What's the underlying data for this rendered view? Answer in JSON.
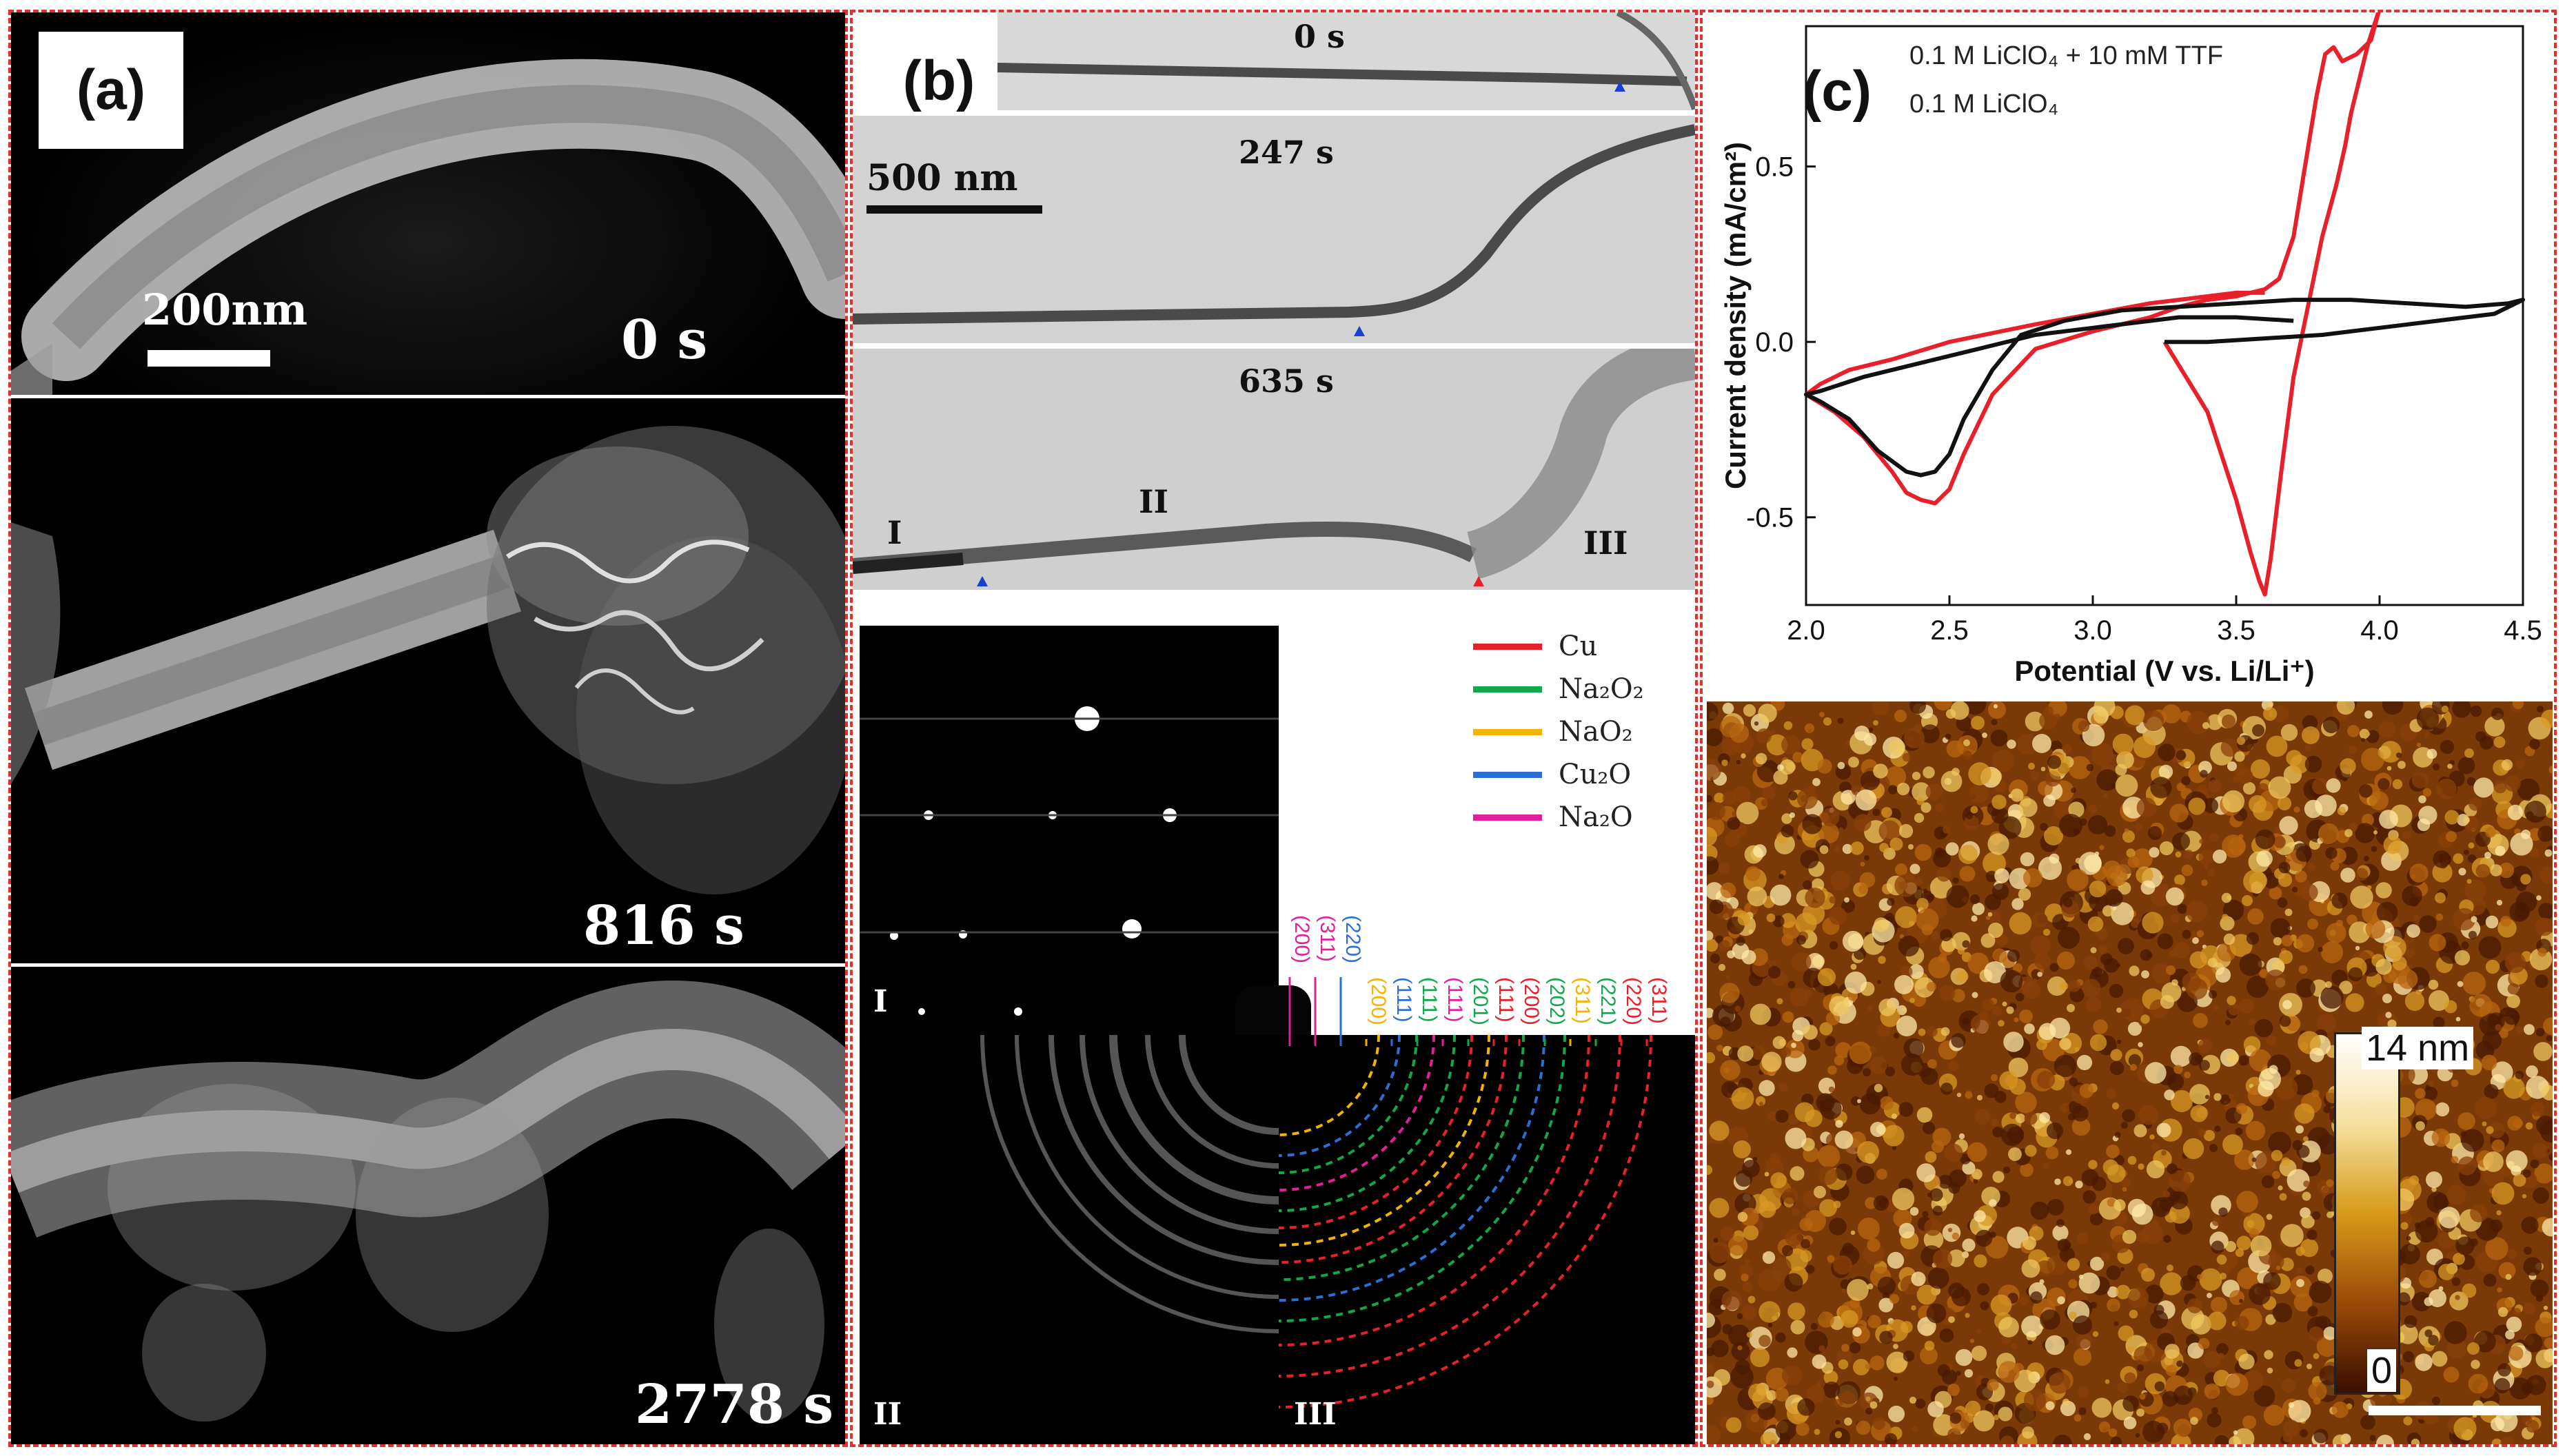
{
  "panels": {
    "a": {
      "tag": "(a)",
      "scale_bar": "200nm",
      "frames": [
        "0 s",
        "816 s",
        "2778 s"
      ]
    },
    "b": {
      "tag": "(b)",
      "scale_bar": "500 nm",
      "frames": [
        "0 s",
        "247 s",
        "635 s"
      ],
      "regions": [
        "I",
        "II",
        "III"
      ],
      "legend": [
        {
          "name": "Cu",
          "color": "#e8202a"
        },
        {
          "name": "Na₂O₂",
          "color": "#11a84c"
        },
        {
          "name": "NaO₂",
          "color": "#f2b400"
        },
        {
          "name": "Cu₂O",
          "color": "#2b6fd6"
        },
        {
          "name": "Na₂O",
          "color": "#e0209a"
        }
      ],
      "diffraction_labels": [
        {
          "text": "(200)",
          "color": "#e0209a"
        },
        {
          "text": "(311)",
          "color": "#e0209a"
        },
        {
          "text": "(220)",
          "color": "#2b6fd6"
        },
        {
          "text": "(200)",
          "color": "#f2b400"
        },
        {
          "text": "(111)",
          "color": "#2b6fd6"
        },
        {
          "text": "(111)",
          "color": "#11a84c"
        },
        {
          "text": "(111)",
          "color": "#e0209a"
        },
        {
          "text": "(201)",
          "color": "#11a84c"
        },
        {
          "text": "(111)",
          "color": "#e8202a"
        },
        {
          "text": "(200)",
          "color": "#e8202a"
        },
        {
          "text": "(202)",
          "color": "#11a84c"
        },
        {
          "text": "(311)",
          "color": "#f2b400"
        },
        {
          "text": "(221)",
          "color": "#11a84c"
        },
        {
          "text": "(220)",
          "color": "#e8202a"
        },
        {
          "text": "(311)",
          "color": "#e8202a"
        }
      ]
    },
    "c": {
      "tag": "(c)",
      "afm_scale_top": "14 nm",
      "afm_scale_bottom": "0"
    }
  },
  "chart_data": {
    "type": "line",
    "xlabel": "Potential (V vs. Li/Li⁺)",
    "ylabel": "Current density (mA/cm²)",
    "xlim": [
      2.0,
      4.5
    ],
    "ylim": [
      -0.75,
      0.9
    ],
    "xticks": [
      "2.0",
      "2.5",
      "3.0",
      "3.5",
      "4.0",
      "4.5"
    ],
    "yticks": [
      "-0.5",
      "0.0",
      "0.5"
    ],
    "legend_position": "top",
    "series": [
      {
        "name": "0.1 M LiClO₄ + 10 mM TTF",
        "color": "#e8202a",
        "x": [
          3.25,
          3.4,
          3.5,
          3.55,
          3.58,
          3.6,
          3.62,
          3.66,
          3.7,
          3.75,
          3.8,
          3.85,
          3.88,
          3.9,
          3.93,
          3.96,
          4.0,
          3.97,
          3.92,
          3.87,
          3.84,
          3.81,
          3.78,
          3.74,
          3.7,
          3.65,
          3.6,
          3.5,
          3.4,
          3.3,
          3.2,
          3.0,
          2.8,
          2.65,
          2.55,
          2.5,
          2.45,
          2.4,
          2.35,
          2.3,
          2.2,
          2.1,
          2.0,
          2.05,
          2.15,
          2.3,
          2.5,
          2.8,
          3.0,
          3.2,
          3.3,
          3.4,
          3.5,
          3.6
        ],
        "y": [
          0.0,
          -0.2,
          -0.45,
          -0.6,
          -0.68,
          -0.72,
          -0.62,
          -0.35,
          -0.1,
          0.1,
          0.3,
          0.45,
          0.56,
          0.65,
          0.75,
          0.85,
          0.95,
          0.86,
          0.82,
          0.8,
          0.84,
          0.82,
          0.7,
          0.5,
          0.3,
          0.18,
          0.15,
          0.13,
          0.12,
          0.1,
          0.07,
          0.03,
          -0.02,
          -0.15,
          -0.32,
          -0.42,
          -0.46,
          -0.45,
          -0.43,
          -0.37,
          -0.27,
          -0.2,
          -0.15,
          -0.12,
          -0.08,
          -0.05,
          0.0,
          0.05,
          0.08,
          0.11,
          0.12,
          0.13,
          0.14,
          0.14
        ]
      },
      {
        "name": "0.1 M LiClO₄",
        "color": "#111111",
        "x": [
          3.25,
          3.4,
          3.6,
          3.8,
          4.0,
          4.2,
          4.4,
          4.5,
          4.45,
          4.3,
          4.1,
          3.9,
          3.7,
          3.5,
          3.3,
          3.1,
          2.9,
          2.75,
          2.65,
          2.55,
          2.5,
          2.45,
          2.4,
          2.35,
          2.25,
          2.15,
          2.05,
          2.0,
          2.05,
          2.2,
          2.4,
          2.6,
          2.8,
          3.0,
          3.2,
          3.3,
          3.5,
          3.7
        ],
        "y": [
          0.0,
          0.0,
          0.01,
          0.02,
          0.04,
          0.06,
          0.08,
          0.12,
          0.11,
          0.1,
          0.11,
          0.12,
          0.12,
          0.11,
          0.1,
          0.09,
          0.06,
          0.02,
          -0.08,
          -0.22,
          -0.32,
          -0.37,
          -0.38,
          -0.37,
          -0.31,
          -0.22,
          -0.17,
          -0.15,
          -0.14,
          -0.1,
          -0.06,
          -0.02,
          0.02,
          0.04,
          0.06,
          0.07,
          0.07,
          0.06
        ]
      }
    ]
  }
}
